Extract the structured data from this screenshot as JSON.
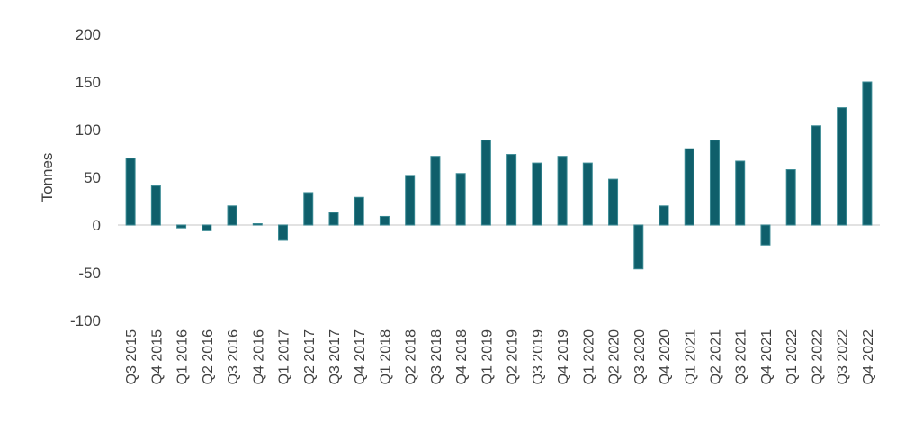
{
  "chart_data": {
    "type": "bar",
    "title": "",
    "xlabel": "",
    "ylabel": "Tonnes",
    "ylim": [
      -100,
      200
    ],
    "yticks": [
      200,
      150,
      100,
      50,
      0,
      -50,
      -100
    ],
    "ytick_labels": [
      "200",
      "150",
      "100",
      "50",
      "0",
      "-50",
      "-100"
    ],
    "grid": false,
    "legend": "none",
    "bar_color": "#0f5f6b",
    "bar_edge_color": "#3a8a94",
    "zero_line_color": "#d9d9d9",
    "categories": [
      "Q3 2015",
      "Q4 2015",
      "Q1 2016",
      "Q2 2016",
      "Q3 2016",
      "Q4 2016",
      "Q1 2017",
      "Q2 2017",
      "Q3 2017",
      "Q4 2017",
      "Q1 2018",
      "Q2 2018",
      "Q3 2018",
      "Q4 2018",
      "Q1 2019",
      "Q2 2019",
      "Q3 2019",
      "Q4 2019",
      "Q1 2020",
      "Q2 2020",
      "Q3 2020",
      "Q4 2020",
      "Q1 2021",
      "Q2 2021",
      "Q3 2021",
      "Q4 2021",
      "Q1 2022",
      "Q2 2022",
      "Q3 2022",
      "Q4 2022"
    ],
    "values": [
      70,
      41,
      -3,
      -6,
      20,
      1,
      -16,
      34,
      13,
      29,
      9,
      52,
      72,
      54,
      89,
      74,
      65,
      72,
      65,
      48,
      -46,
      20,
      80,
      89,
      67,
      -21,
      58,
      104,
      123,
      150
    ]
  }
}
